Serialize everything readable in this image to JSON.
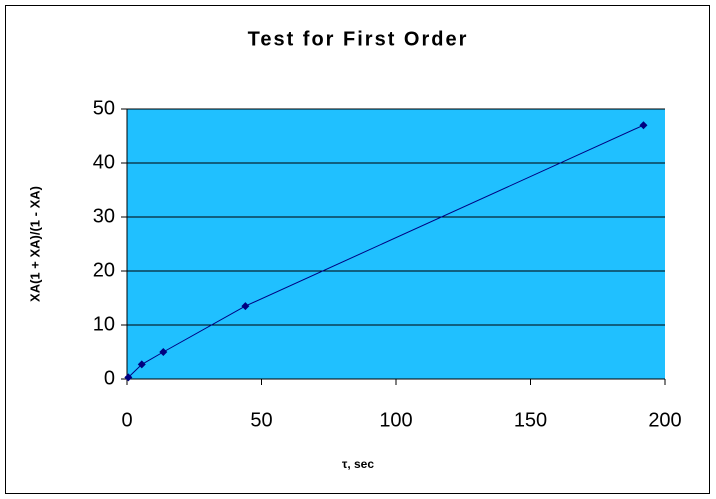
{
  "chart_data": {
    "type": "scatter",
    "title": "Test for First Order",
    "x_label": "τ, sec",
    "y_label": "XA(1 + XA)/(1 - XA)",
    "x": [
      0.5,
      5.5,
      13.5,
      44,
      192
    ],
    "values": [
      0.3,
      2.7,
      5,
      13.5,
      47
    ],
    "color": "#000080",
    "line": true,
    "plot_background": "#20c0ff",
    "xlim": [
      0,
      200
    ],
    "xticks": [
      0,
      50,
      100,
      150,
      200
    ],
    "ylim": [
      0,
      50
    ],
    "yticks": [
      0,
      10,
      20,
      30,
      40,
      50
    ],
    "grid": true
  }
}
